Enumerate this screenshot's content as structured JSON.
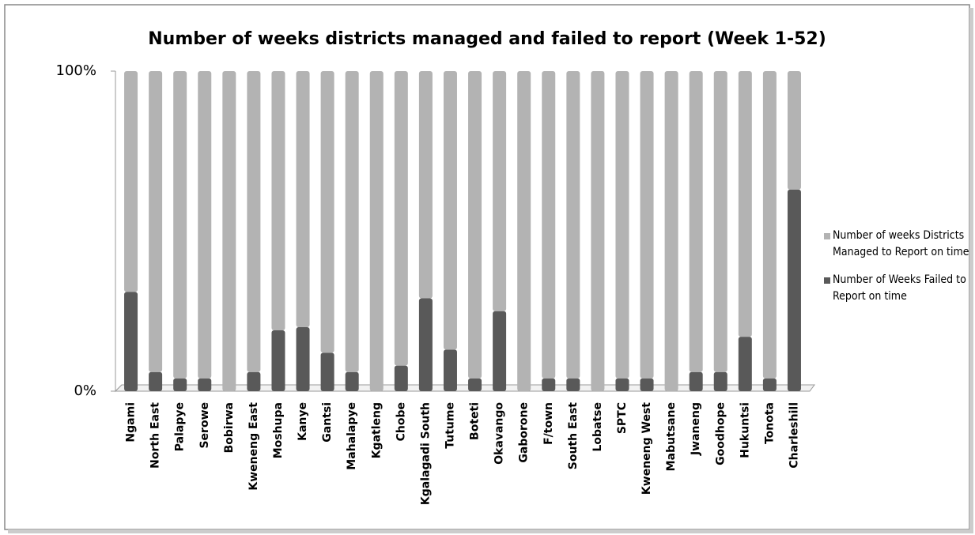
{
  "chart_data": {
    "type": "stacked_bar",
    "title": "Number of weeks districts managed and failed to report (Week 1-52)",
    "categories": [
      "Ngami",
      "North East",
      "Palapye",
      "Serowe",
      "Bobirwa",
      "Kweneng East",
      "Moshupa",
      "Kanye",
      "Gantsi",
      "Mahalapye",
      "Kgatleng",
      "Chobe",
      "Kgalagadi South",
      "Tutume",
      "Boteti",
      "Okavango",
      "Gaborone",
      "F/town",
      "South East",
      "Lobatse",
      "SPTC",
      "Kweneng West",
      "Mabutsane",
      "Jwaneng",
      "Goodhope",
      "Hukuntsi",
      "Tonota",
      "Charleshill"
    ],
    "series": [
      {
        "name": "Number of Weeks Failed to Report on time",
        "color": "#595959",
        "values": [
          31,
          6,
          4,
          4,
          0,
          6,
          19,
          20,
          12,
          6,
          0,
          8,
          29,
          13,
          4,
          25,
          0,
          4,
          4,
          0,
          4,
          4,
          0,
          6,
          6,
          17,
          4,
          63
        ]
      },
      {
        "name": "Number of weeks Districts Managed to Report on time",
        "color": "#b3b3b3",
        "values": [
          69,
          94,
          96,
          96,
          100,
          94,
          81,
          80,
          88,
          94,
          100,
          92,
          71,
          87,
          96,
          75,
          100,
          96,
          96,
          100,
          96,
          96,
          100,
          94,
          94,
          83,
          96,
          37
        ]
      }
    ],
    "ylim": [
      0,
      100
    ],
    "yticks": [
      {
        "value": 0,
        "label": "0%"
      },
      {
        "value": 100,
        "label": "100%"
      }
    ],
    "legend": "right"
  }
}
